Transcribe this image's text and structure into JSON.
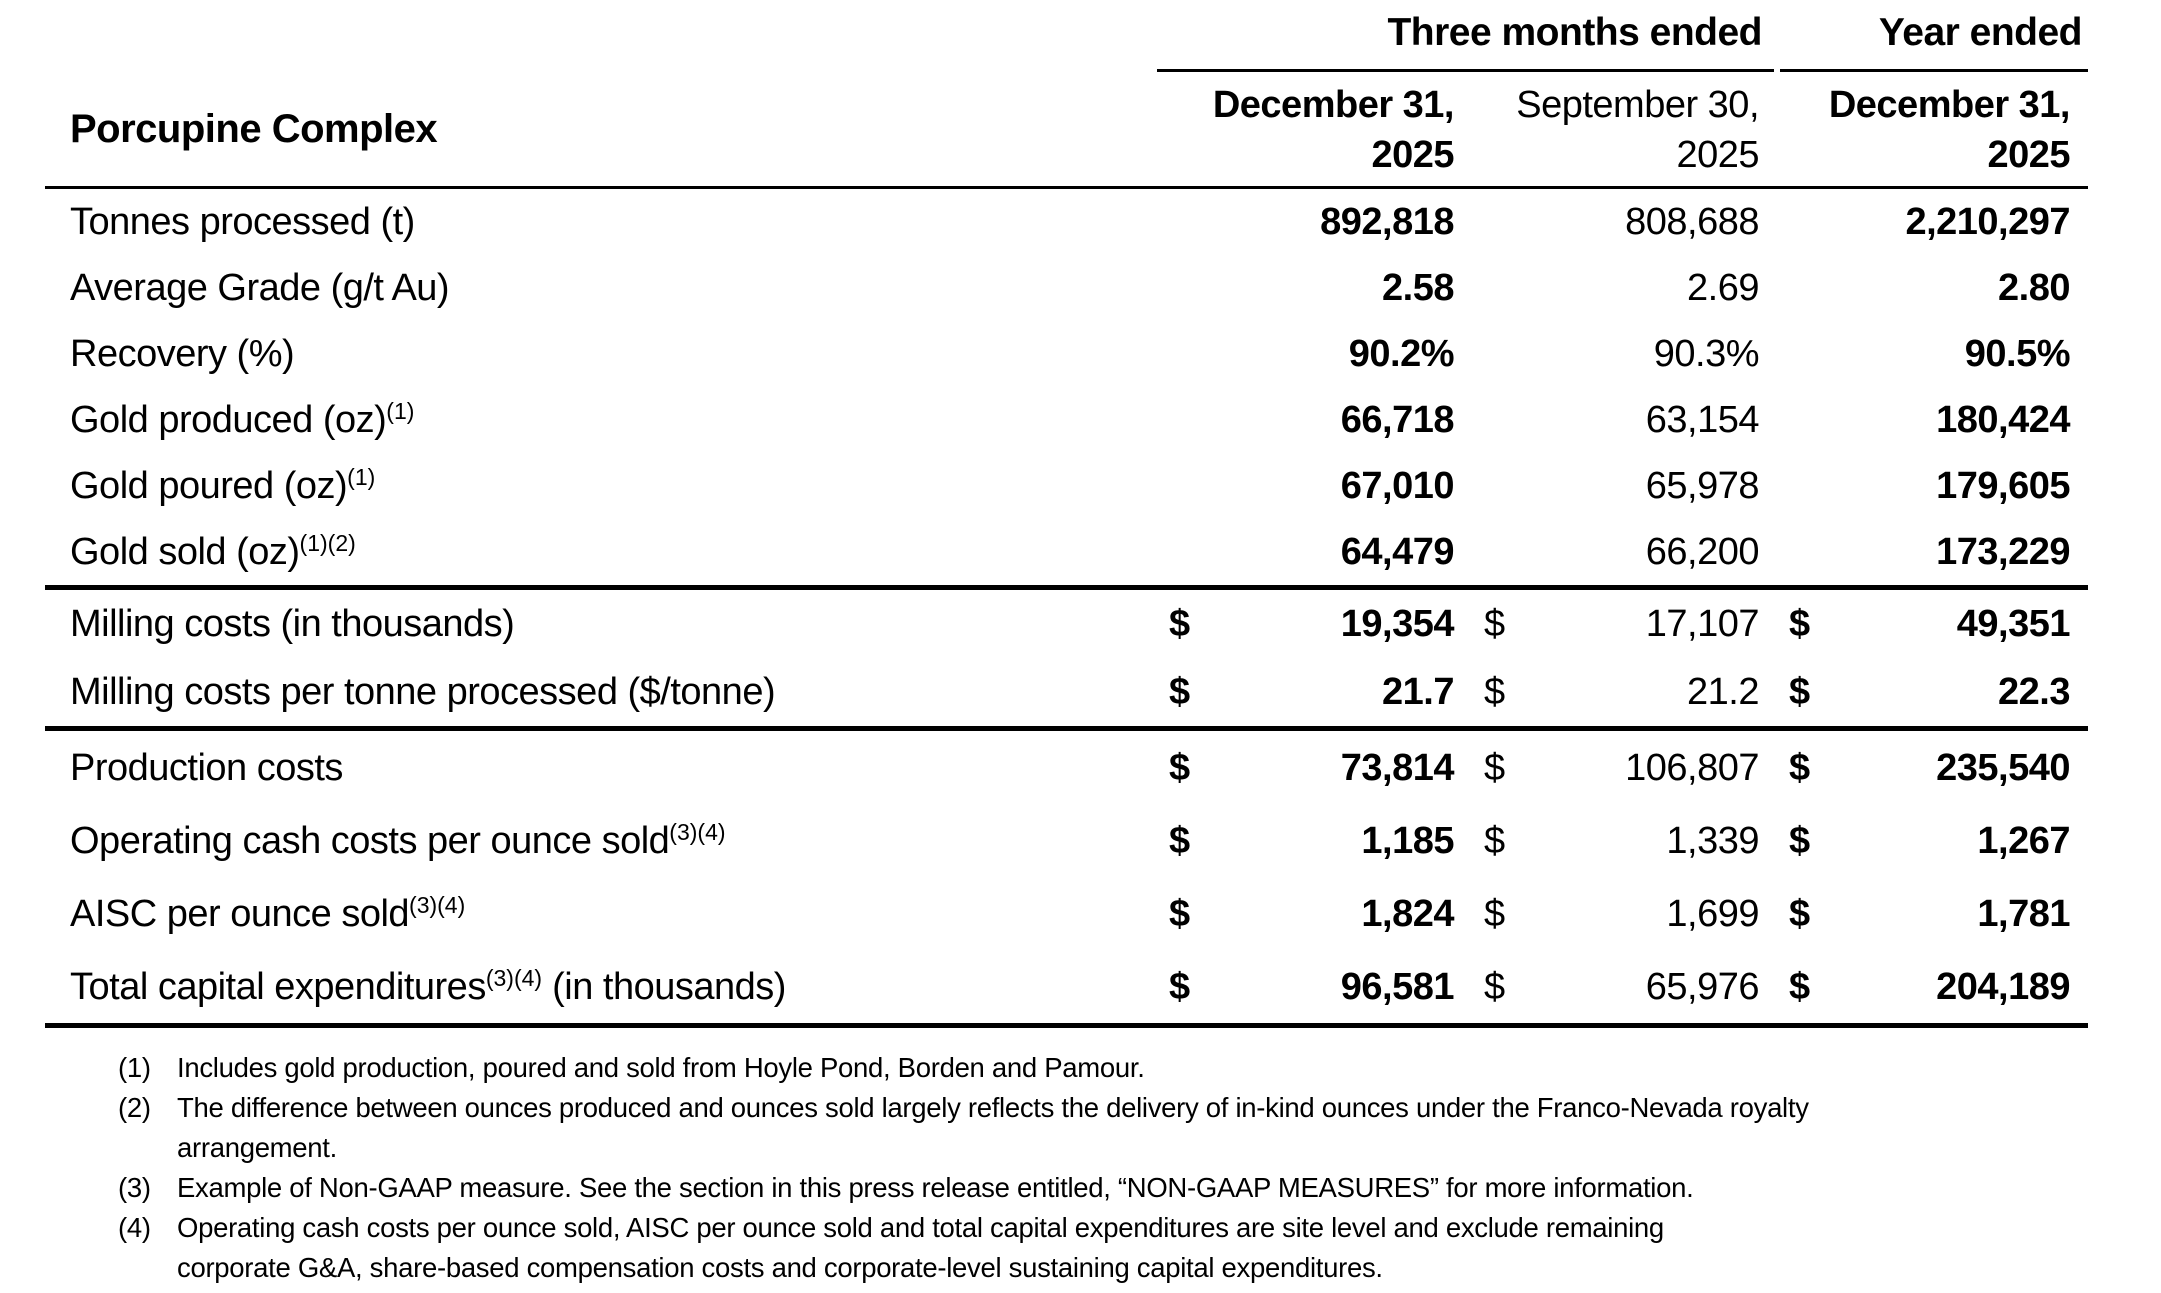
{
  "table": {
    "title": "Porcupine Complex",
    "group_headers": {
      "three_months": "Three months ended",
      "year": "Year ended"
    },
    "column_headers": [
      {
        "line1": "December 31,",
        "line2": "2025"
      },
      {
        "line1": "September 30,",
        "line2": "2025"
      },
      {
        "line1": "December 31,",
        "line2": "2025"
      }
    ],
    "dollar_sign": "$",
    "sections": [
      {
        "rows": [
          {
            "label": {
              "pre": "Tonnes processed (t)",
              "sup": "",
              "post": ""
            },
            "dollar": false,
            "values": [
              "892,818",
              "808,688",
              "2,210,297"
            ]
          },
          {
            "label": {
              "pre": "Average Grade (g/t Au)",
              "sup": "",
              "post": ""
            },
            "dollar": false,
            "values": [
              "2.58",
              "2.69",
              "2.80"
            ]
          },
          {
            "label": {
              "pre": "Recovery (%)",
              "sup": "",
              "post": ""
            },
            "dollar": false,
            "values": [
              "90.2%",
              "90.3%",
              "90.5%"
            ]
          },
          {
            "label": {
              "pre": "Gold produced (oz)",
              "sup": "(1)",
              "post": ""
            },
            "dollar": false,
            "values": [
              "66,718",
              "63,154",
              "180,424"
            ]
          },
          {
            "label": {
              "pre": "Gold poured (oz)",
              "sup": "(1)",
              "post": ""
            },
            "dollar": false,
            "values": [
              "67,010",
              "65,978",
              "179,605"
            ]
          },
          {
            "label": {
              "pre": "Gold sold (oz)",
              "sup": "(1)(2)",
              "post": ""
            },
            "dollar": false,
            "values": [
              "64,479",
              "66,200",
              "173,229"
            ]
          }
        ]
      },
      {
        "rows": [
          {
            "label": {
              "pre": "Milling costs (in thousands)",
              "sup": "",
              "post": ""
            },
            "dollar": true,
            "values": [
              "19,354",
              "17,107",
              "49,351"
            ]
          },
          {
            "label": {
              "pre": "Milling costs per tonne processed ($/tonne)",
              "sup": "",
              "post": ""
            },
            "dollar": true,
            "values": [
              "21.7",
              "21.2",
              "22.3"
            ]
          }
        ]
      },
      {
        "rows": [
          {
            "label": {
              "pre": "Production costs",
              "sup": "",
              "post": ""
            },
            "dollar": true,
            "values": [
              "73,814",
              "106,807",
              "235,540"
            ]
          },
          {
            "label": {
              "pre": "Operating cash costs per ounce sold",
              "sup": "(3)(4)",
              "post": ""
            },
            "dollar": true,
            "values": [
              "1,185",
              "1,339",
              "1,267"
            ]
          },
          {
            "label": {
              "pre": "AISC per ounce sold",
              "sup": "(3)(4)",
              "post": ""
            },
            "dollar": true,
            "values": [
              "1,824",
              "1,699",
              "1,781"
            ]
          },
          {
            "label": {
              "pre": "Total capital expenditures",
              "sup": "(3)(4)",
              "post": " (in thousands)"
            },
            "dollar": true,
            "values": [
              "96,581",
              "65,976",
              "204,189"
            ]
          }
        ]
      }
    ]
  },
  "footnotes": [
    {
      "marker": "(1)",
      "lines": [
        "Includes gold production, poured and sold from Hoyle Pond, Borden and Pamour."
      ]
    },
    {
      "marker": "(2)",
      "lines": [
        "The difference between ounces produced and ounces sold largely reflects the delivery of in-kind ounces under the Franco-Nevada royalty",
        "arrangement."
      ]
    },
    {
      "marker": "(3)",
      "lines": [
        "Example of Non-GAAP measure. See the section in this press release entitled, “NON-GAAP MEASURES” for more information."
      ]
    },
    {
      "marker": "(4)",
      "lines": [
        "Operating cash costs per ounce sold, AISC per ounce sold and total capital expenditures are site level and exclude remaining",
        "corporate G&A, share-based  compensation costs and corporate-level sustaining capital expenditures."
      ]
    }
  ]
}
